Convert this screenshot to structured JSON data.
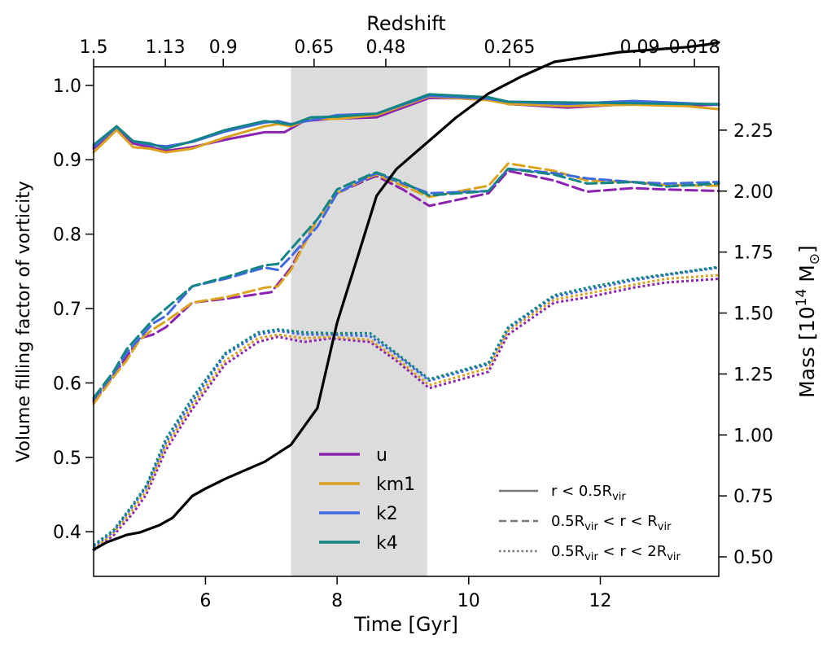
{
  "chart_data": {
    "type": "line",
    "xlabel": "Time [Gyr]",
    "ylabel": "Volume filling factor of vorticity",
    "ylabel_right": "Mass [10",
    "ylabel_right_sup": "14",
    "ylabel_right_unit": " M",
    "ylabel_right_sub": "⊙",
    "top_label": "Redshift",
    "xlim": [
      4.3,
      13.8
    ],
    "ylim": [
      0.34,
      1.025
    ],
    "ylim_right": [
      0.42,
      2.51
    ],
    "x_ticks": [
      6,
      8,
      10,
      12
    ],
    "x_tick_labels": [
      "6",
      "8",
      "10",
      "12"
    ],
    "y_ticks": [
      0.4,
      0.5,
      0.6,
      0.7,
      0.8,
      0.9,
      1.0
    ],
    "y_tick_labels": [
      "0.4",
      "0.5",
      "0.6",
      "0.7",
      "0.8",
      "0.9",
      "1.0"
    ],
    "y_right_ticks": [
      0.5,
      0.75,
      1.0,
      1.25,
      1.5,
      1.75,
      2.0,
      2.25
    ],
    "y_right_tick_labels": [
      "0.50",
      "0.75",
      "1.00",
      "1.25",
      "1.50",
      "1.75",
      "2.00",
      "2.25"
    ],
    "redshift_ticks": [
      {
        "t": 4.3,
        "label": "1.5"
      },
      {
        "t": 5.39,
        "label": "1.13"
      },
      {
        "t": 6.27,
        "label": "0.9"
      },
      {
        "t": 7.65,
        "label": "0.65"
      },
      {
        "t": 8.74,
        "label": "0.48"
      },
      {
        "t": 10.62,
        "label": "0.265"
      },
      {
        "t": 12.6,
        "label": "0.09"
      },
      {
        "t": 13.43,
        "label": "0.018"
      }
    ],
    "shaded_region": [
      7.3,
      9.37
    ],
    "colors": {
      "u": "#8B22B0",
      "km1": "#DAA21E",
      "k2": "#4169E1",
      "k4": "#138585",
      "mass": "#000000",
      "shade": "#DCDCDC"
    },
    "series": [
      {
        "name": "u",
        "region": "inner",
        "style": "solid",
        "x": [
          4.3,
          4.65,
          4.9,
          5.15,
          5.4,
          5.8,
          6.3,
          6.9,
          7.2,
          7.5,
          7.9,
          8.6,
          9.4,
          10.3,
          10.6,
          11.5,
          12.5,
          13.3,
          13.8
        ],
        "y": [
          0.915,
          0.942,
          0.922,
          0.917,
          0.912,
          0.917,
          0.927,
          0.937,
          0.937,
          0.952,
          0.955,
          0.957,
          0.983,
          0.982,
          0.975,
          0.97,
          0.975,
          0.973,
          0.974
        ]
      },
      {
        "name": "km1",
        "region": "inner",
        "style": "solid",
        "x": [
          4.3,
          4.65,
          4.9,
          5.15,
          5.4,
          5.8,
          6.3,
          6.9,
          7.1,
          7.3,
          7.6,
          8.0,
          8.6,
          9.4,
          10.3,
          10.6,
          11.5,
          12.5,
          13.3,
          13.8
        ],
        "y": [
          0.91,
          0.94,
          0.917,
          0.915,
          0.91,
          0.915,
          0.93,
          0.945,
          0.948,
          0.945,
          0.955,
          0.955,
          0.96,
          0.985,
          0.98,
          0.975,
          0.972,
          0.974,
          0.972,
          0.968
        ]
      },
      {
        "name": "k2",
        "region": "inner",
        "style": "solid",
        "x": [
          4.3,
          4.65,
          4.9,
          5.15,
          5.4,
          5.8,
          6.3,
          6.9,
          7.1,
          7.3,
          7.6,
          8.0,
          8.6,
          9.4,
          10.3,
          10.6,
          11.5,
          12.5,
          13.3,
          13.8
        ],
        "y": [
          0.917,
          0.944,
          0.925,
          0.92,
          0.918,
          0.924,
          0.938,
          0.95,
          0.952,
          0.948,
          0.953,
          0.96,
          0.962,
          0.986,
          0.982,
          0.978,
          0.975,
          0.979,
          0.976,
          0.974
        ]
      },
      {
        "name": "k4",
        "region": "inner",
        "style": "solid",
        "x": [
          4.3,
          4.65,
          4.9,
          5.15,
          5.4,
          5.8,
          6.3,
          6.9,
          7.1,
          7.3,
          7.6,
          8.0,
          8.6,
          9.4,
          10.3,
          10.6,
          11.5,
          12.5,
          13.3,
          13.8
        ],
        "y": [
          0.92,
          0.945,
          0.925,
          0.922,
          0.915,
          0.925,
          0.94,
          0.952,
          0.95,
          0.947,
          0.957,
          0.958,
          0.962,
          0.988,
          0.984,
          0.978,
          0.977,
          0.976,
          0.975,
          0.975
        ]
      },
      {
        "name": "u",
        "region": "middle",
        "style": "dashed",
        "x": [
          4.3,
          4.6,
          4.8,
          5.0,
          5.2,
          5.4,
          5.8,
          6.3,
          7.0,
          7.3,
          7.7,
          8.0,
          8.5,
          8.6,
          9.0,
          9.4,
          10.3,
          10.6,
          11.3,
          11.8,
          12.5,
          13.0,
          13.8
        ],
        "y": [
          0.575,
          0.61,
          0.635,
          0.66,
          0.665,
          0.675,
          0.708,
          0.713,
          0.722,
          0.755,
          0.82,
          0.855,
          0.875,
          0.878,
          0.86,
          0.838,
          0.855,
          0.885,
          0.872,
          0.857,
          0.862,
          0.86,
          0.858
        ]
      },
      {
        "name": "km1",
        "region": "middle",
        "style": "dashed",
        "x": [
          4.3,
          4.6,
          4.8,
          5.0,
          5.2,
          5.4,
          5.8,
          6.3,
          6.9,
          7.1,
          7.3,
          7.7,
          8.0,
          8.5,
          8.6,
          9.0,
          9.4,
          10.3,
          10.6,
          11.3,
          11.8,
          12.5,
          13.0,
          13.8
        ],
        "y": [
          0.572,
          0.608,
          0.63,
          0.658,
          0.672,
          0.683,
          0.708,
          0.715,
          0.728,
          0.73,
          0.752,
          0.82,
          0.855,
          0.877,
          0.88,
          0.865,
          0.85,
          0.865,
          0.895,
          0.885,
          0.872,
          0.87,
          0.866,
          0.865
        ]
      },
      {
        "name": "k2",
        "region": "middle",
        "style": "dashed",
        "x": [
          4.3,
          4.6,
          4.8,
          5.0,
          5.2,
          5.4,
          5.8,
          6.3,
          6.9,
          7.1,
          7.3,
          7.7,
          8.0,
          8.5,
          8.6,
          9.0,
          9.4,
          10.3,
          10.6,
          11.3,
          11.8,
          12.5,
          13.0,
          13.8
        ],
        "y": [
          0.578,
          0.612,
          0.64,
          0.66,
          0.68,
          0.69,
          0.73,
          0.74,
          0.755,
          0.752,
          0.77,
          0.81,
          0.855,
          0.878,
          0.882,
          0.868,
          0.855,
          0.858,
          0.888,
          0.882,
          0.875,
          0.87,
          0.868,
          0.87
        ]
      },
      {
        "name": "k4",
        "region": "middle",
        "style": "dashed",
        "x": [
          4.3,
          4.6,
          4.8,
          5.0,
          5.2,
          5.4,
          5.8,
          6.3,
          6.9,
          7.1,
          7.3,
          7.7,
          8.0,
          8.5,
          8.6,
          9.0,
          9.4,
          10.3,
          10.6,
          11.3,
          11.8,
          12.5,
          13.0,
          13.8
        ],
        "y": [
          0.58,
          0.615,
          0.645,
          0.665,
          0.685,
          0.7,
          0.73,
          0.742,
          0.758,
          0.76,
          0.78,
          0.82,
          0.86,
          0.88,
          0.883,
          0.87,
          0.852,
          0.858,
          0.888,
          0.88,
          0.868,
          0.87,
          0.864,
          0.868
        ]
      },
      {
        "name": "u",
        "region": "outer",
        "style": "dotted",
        "x": [
          4.3,
          4.6,
          4.9,
          5.1,
          5.4,
          5.8,
          6.3,
          6.8,
          7.1,
          7.5,
          7.9,
          8.5,
          8.9,
          9.4,
          10.3,
          10.6,
          11.3,
          11.8,
          12.5,
          13.0,
          13.8
        ],
        "y": [
          0.375,
          0.395,
          0.425,
          0.45,
          0.51,
          0.565,
          0.625,
          0.655,
          0.662,
          0.655,
          0.66,
          0.655,
          0.63,
          0.593,
          0.615,
          0.665,
          0.708,
          0.715,
          0.728,
          0.735,
          0.74
        ]
      },
      {
        "name": "km1",
        "region": "outer",
        "style": "dotted",
        "x": [
          4.3,
          4.6,
          4.9,
          5.1,
          5.4,
          5.8,
          6.3,
          6.8,
          7.1,
          7.5,
          7.9,
          8.5,
          8.9,
          9.4,
          10.3,
          10.6,
          11.3,
          11.8,
          12.5,
          13.0,
          13.8
        ],
        "y": [
          0.377,
          0.398,
          0.43,
          0.455,
          0.515,
          0.57,
          0.63,
          0.66,
          0.665,
          0.66,
          0.662,
          0.658,
          0.633,
          0.597,
          0.62,
          0.67,
          0.712,
          0.72,
          0.732,
          0.74,
          0.745
        ]
      },
      {
        "name": "k2",
        "region": "outer",
        "style": "dotted",
        "x": [
          4.3,
          4.6,
          4.9,
          5.1,
          5.4,
          5.8,
          6.3,
          6.8,
          7.1,
          7.5,
          7.9,
          8.5,
          8.9,
          9.4,
          10.3,
          10.6,
          11.3,
          11.8,
          12.5,
          13.0,
          13.8
        ],
        "y": [
          0.38,
          0.4,
          0.435,
          0.46,
          0.52,
          0.575,
          0.638,
          0.665,
          0.67,
          0.665,
          0.665,
          0.663,
          0.638,
          0.603,
          0.625,
          0.673,
          0.716,
          0.725,
          0.738,
          0.745,
          0.755
        ]
      },
      {
        "name": "k4",
        "region": "outer",
        "style": "dotted",
        "x": [
          4.3,
          4.6,
          4.9,
          5.1,
          5.4,
          5.8,
          6.3,
          6.8,
          7.1,
          7.5,
          7.9,
          8.5,
          8.9,
          9.4,
          10.3,
          10.6,
          11.3,
          11.8,
          12.5,
          13.0,
          13.8
        ],
        "y": [
          0.382,
          0.402,
          0.437,
          0.462,
          0.525,
          0.58,
          0.64,
          0.668,
          0.672,
          0.668,
          0.667,
          0.667,
          0.64,
          0.605,
          0.627,
          0.675,
          0.718,
          0.728,
          0.74,
          0.746,
          0.756
        ]
      },
      {
        "name": "mass",
        "style": "solid",
        "axis": "right",
        "x": [
          4.3,
          4.5,
          4.8,
          5.0,
          5.3,
          5.5,
          5.8,
          6.0,
          6.3,
          6.9,
          7.3,
          7.7,
          8.0,
          8.3,
          8.6,
          8.9,
          9.2,
          9.5,
          9.8,
          10.3,
          10.8,
          11.3,
          11.8,
          12.3,
          12.8,
          13.3,
          13.6,
          13.8
        ],
        "y": [
          0.53,
          0.56,
          0.59,
          0.6,
          0.63,
          0.66,
          0.75,
          0.78,
          0.82,
          0.89,
          0.96,
          1.11,
          1.46,
          1.72,
          1.98,
          2.09,
          2.16,
          2.23,
          2.3,
          2.4,
          2.47,
          2.53,
          2.55,
          2.57,
          2.58,
          2.59,
          2.6,
          2.61
        ]
      }
    ],
    "legend_colors": [
      {
        "label": "u",
        "key": "u"
      },
      {
        "label": "km1",
        "key": "km1"
      },
      {
        "label": "k2",
        "key": "k2"
      },
      {
        "label": "k4",
        "key": "k4"
      }
    ],
    "legend_regions": [
      {
        "style": "solid",
        "pre": "r < 0.5R",
        "sub": "vir",
        "post": ""
      },
      {
        "style": "dashed",
        "pre": "0.5R",
        "sub": "vir",
        "post": " < r < R",
        "sub2": "vir"
      },
      {
        "style": "dotted",
        "pre": "0.5R",
        "sub": "vir",
        "post": " < r < 2R",
        "sub2": "vir"
      }
    ]
  }
}
